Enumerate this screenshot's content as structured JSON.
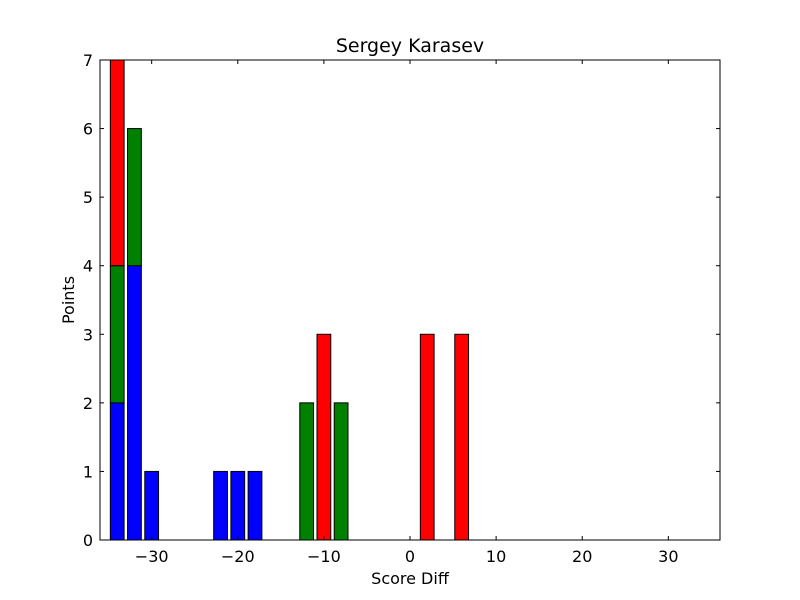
{
  "chart_data": {
    "type": "bar",
    "title": "Sergey Karasev",
    "xlabel": "Score Diff",
    "ylabel": "Points",
    "xlim": [
      -36,
      36
    ],
    "ylim": [
      0,
      7
    ],
    "grid": false,
    "bar_width": 1.6,
    "colors": {
      "blue": "#0000ff",
      "green": "#008000",
      "red": "#ff0000",
      "edge": "#000000"
    },
    "xticks": [
      -30,
      -20,
      -10,
      0,
      10,
      20,
      30
    ],
    "xtick_labels": [
      "−30",
      "−20",
      "−10",
      "0",
      "10",
      "20",
      "30"
    ],
    "yticks": [
      0,
      1,
      2,
      3,
      4,
      5,
      6,
      7
    ],
    "ytick_labels": [
      "0",
      "1",
      "2",
      "3",
      "4",
      "5",
      "6",
      "7"
    ],
    "x": [
      -34,
      -32,
      -30,
      -28,
      -26,
      -24,
      -22,
      -20,
      -18,
      -16,
      -14,
      -12,
      -10,
      -8,
      -6,
      -4,
      -2,
      0,
      2,
      4,
      6,
      8,
      10,
      12,
      14,
      16,
      18,
      20,
      22,
      24,
      26,
      28,
      30,
      32,
      34
    ],
    "series": [
      {
        "color": "blue",
        "values": [
          2,
          4,
          1,
          0,
          0,
          0,
          1,
          1,
          1,
          0,
          0,
          0,
          0,
          0,
          0,
          0,
          0,
          0,
          0,
          0,
          0,
          0,
          0,
          0,
          0,
          0,
          0,
          0,
          0,
          0,
          0,
          0,
          0,
          0,
          0
        ]
      },
      {
        "color": "green",
        "values": [
          2,
          2,
          0,
          0,
          0,
          0,
          0,
          0,
          0,
          0,
          0,
          2,
          0,
          2,
          0,
          0,
          0,
          0,
          0,
          0,
          0,
          0,
          0,
          0,
          0,
          0,
          0,
          0,
          0,
          0,
          0,
          0,
          0,
          0,
          0
        ]
      },
      {
        "color": "red",
        "values": [
          3,
          0,
          0,
          0,
          0,
          0,
          0,
          0,
          0,
          0,
          0,
          0,
          3,
          0,
          0,
          0,
          0,
          0,
          3,
          0,
          3,
          0,
          0,
          0,
          0,
          0,
          0,
          0,
          0,
          0,
          0,
          0,
          0,
          0,
          0
        ]
      }
    ]
  }
}
